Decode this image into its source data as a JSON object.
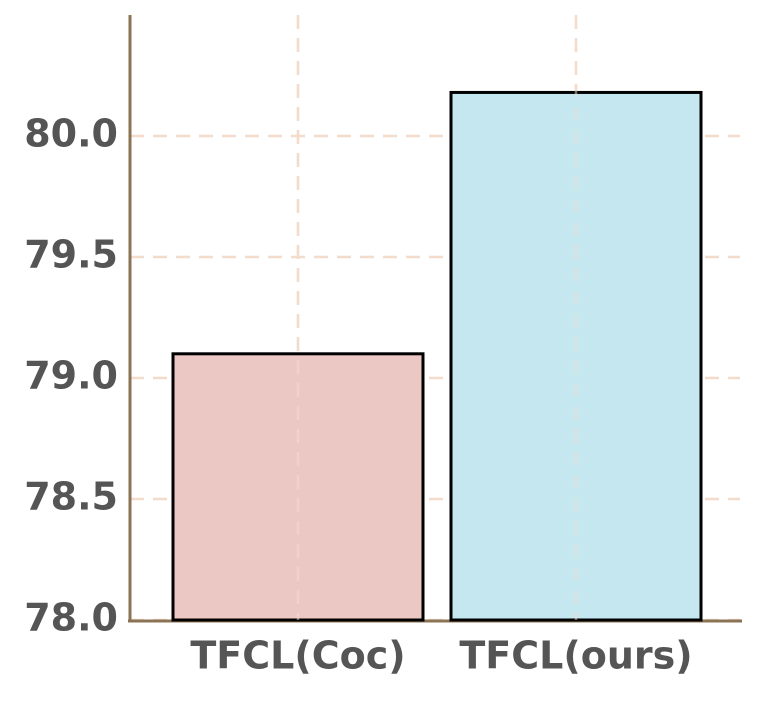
{
  "chart_data": {
    "type": "bar",
    "categories": [
      "TFCL(Coc)",
      "TFCL(ours)"
    ],
    "values": [
      79.1,
      80.18
    ],
    "colors": [
      "#ecc8c4",
      "#c5e7ef"
    ],
    "ylim": [
      78.0,
      80.5
    ],
    "yticks": [
      {
        "value": 78,
        "label": "78.0"
      },
      {
        "value": 78.5,
        "label": "78.5"
      },
      {
        "value": 79,
        "label": "79.0"
      },
      {
        "value": 79.5,
        "label": "79.5"
      },
      {
        "value": 80,
        "label": "80.0"
      }
    ],
    "grid": true
  }
}
